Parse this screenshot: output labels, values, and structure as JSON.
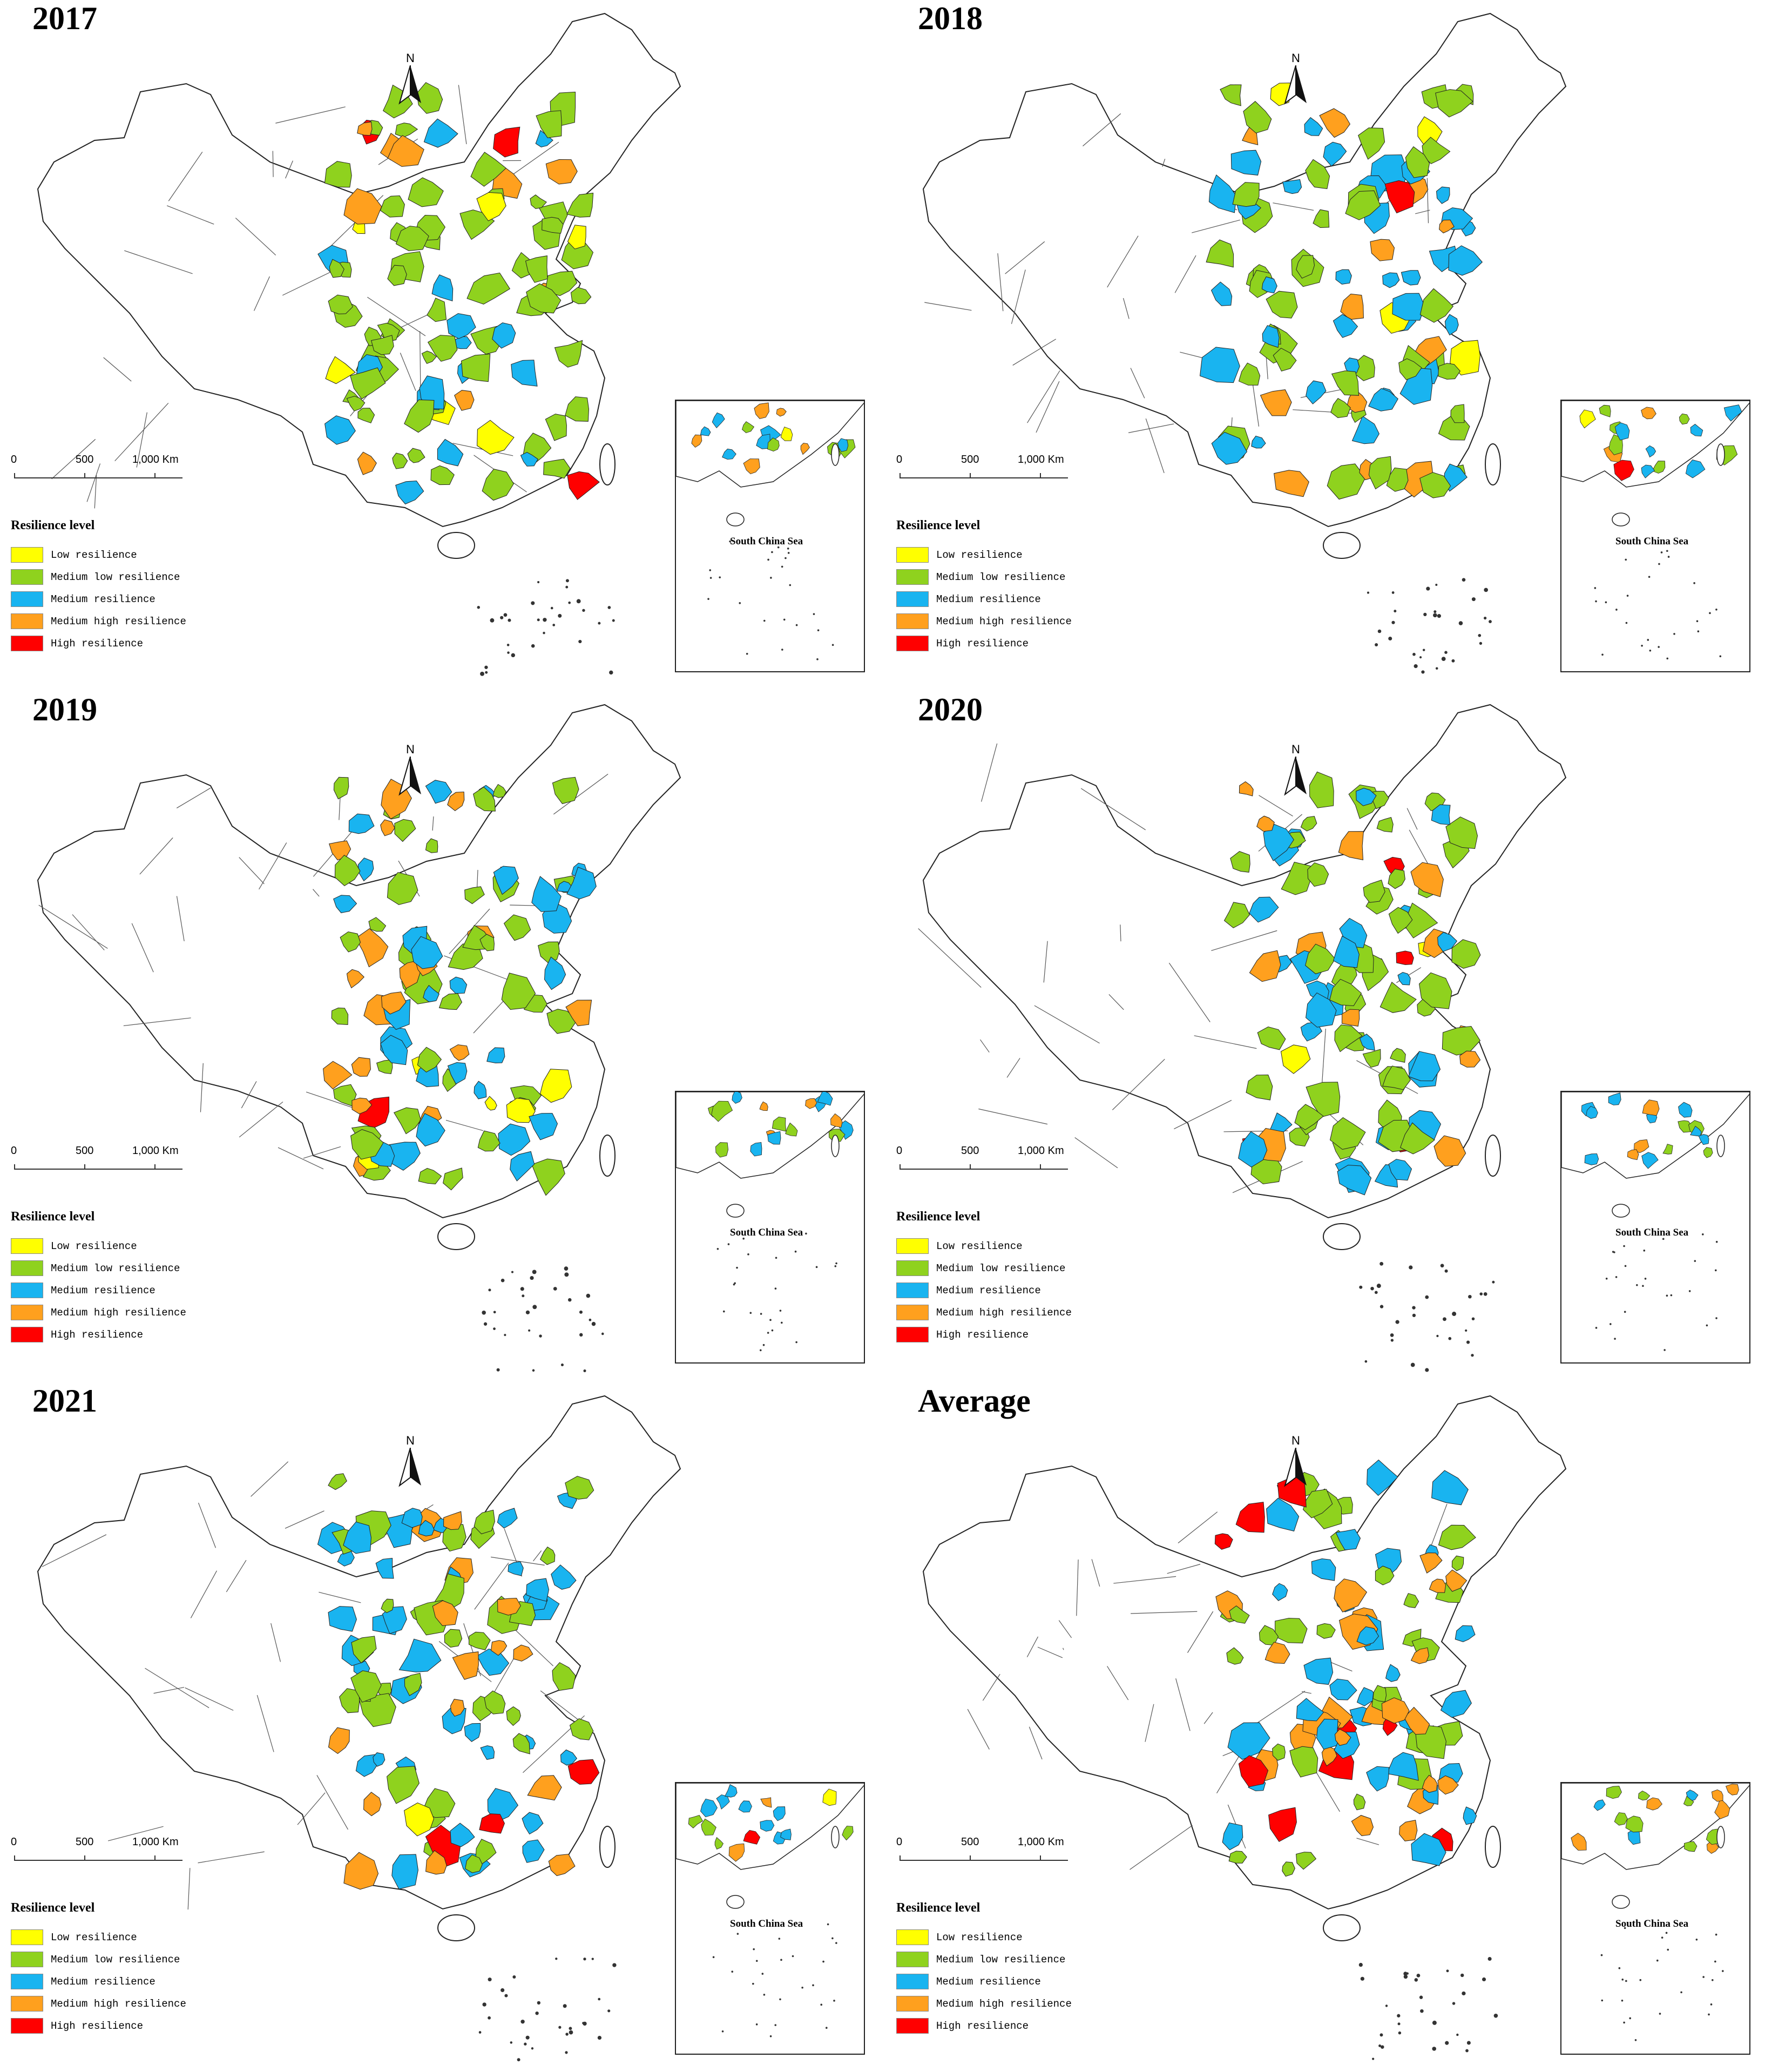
{
  "legend": {
    "title": "Resilience level",
    "levels": [
      {
        "label": "Low resilience",
        "color": "#ffff00"
      },
      {
        "label": "Medium low resilience",
        "color": "#8fd21e"
      },
      {
        "label": "Medium resilience",
        "color": "#19b4f0"
      },
      {
        "label": "Medium high resilience",
        "color": "#ffa01e"
      },
      {
        "label": "High resilience",
        "color": "#ff0000"
      }
    ]
  },
  "north_label": "N",
  "scale_labels": [
    "0",
    "500",
    "1,000 Km"
  ],
  "inset_label": "South China Sea",
  "panels": [
    {
      "title": "2017"
    },
    {
      "title": "2018"
    },
    {
      "title": "2019"
    },
    {
      "title": "2020"
    },
    {
      "title": "2021"
    },
    {
      "title": "Average"
    }
  ]
}
